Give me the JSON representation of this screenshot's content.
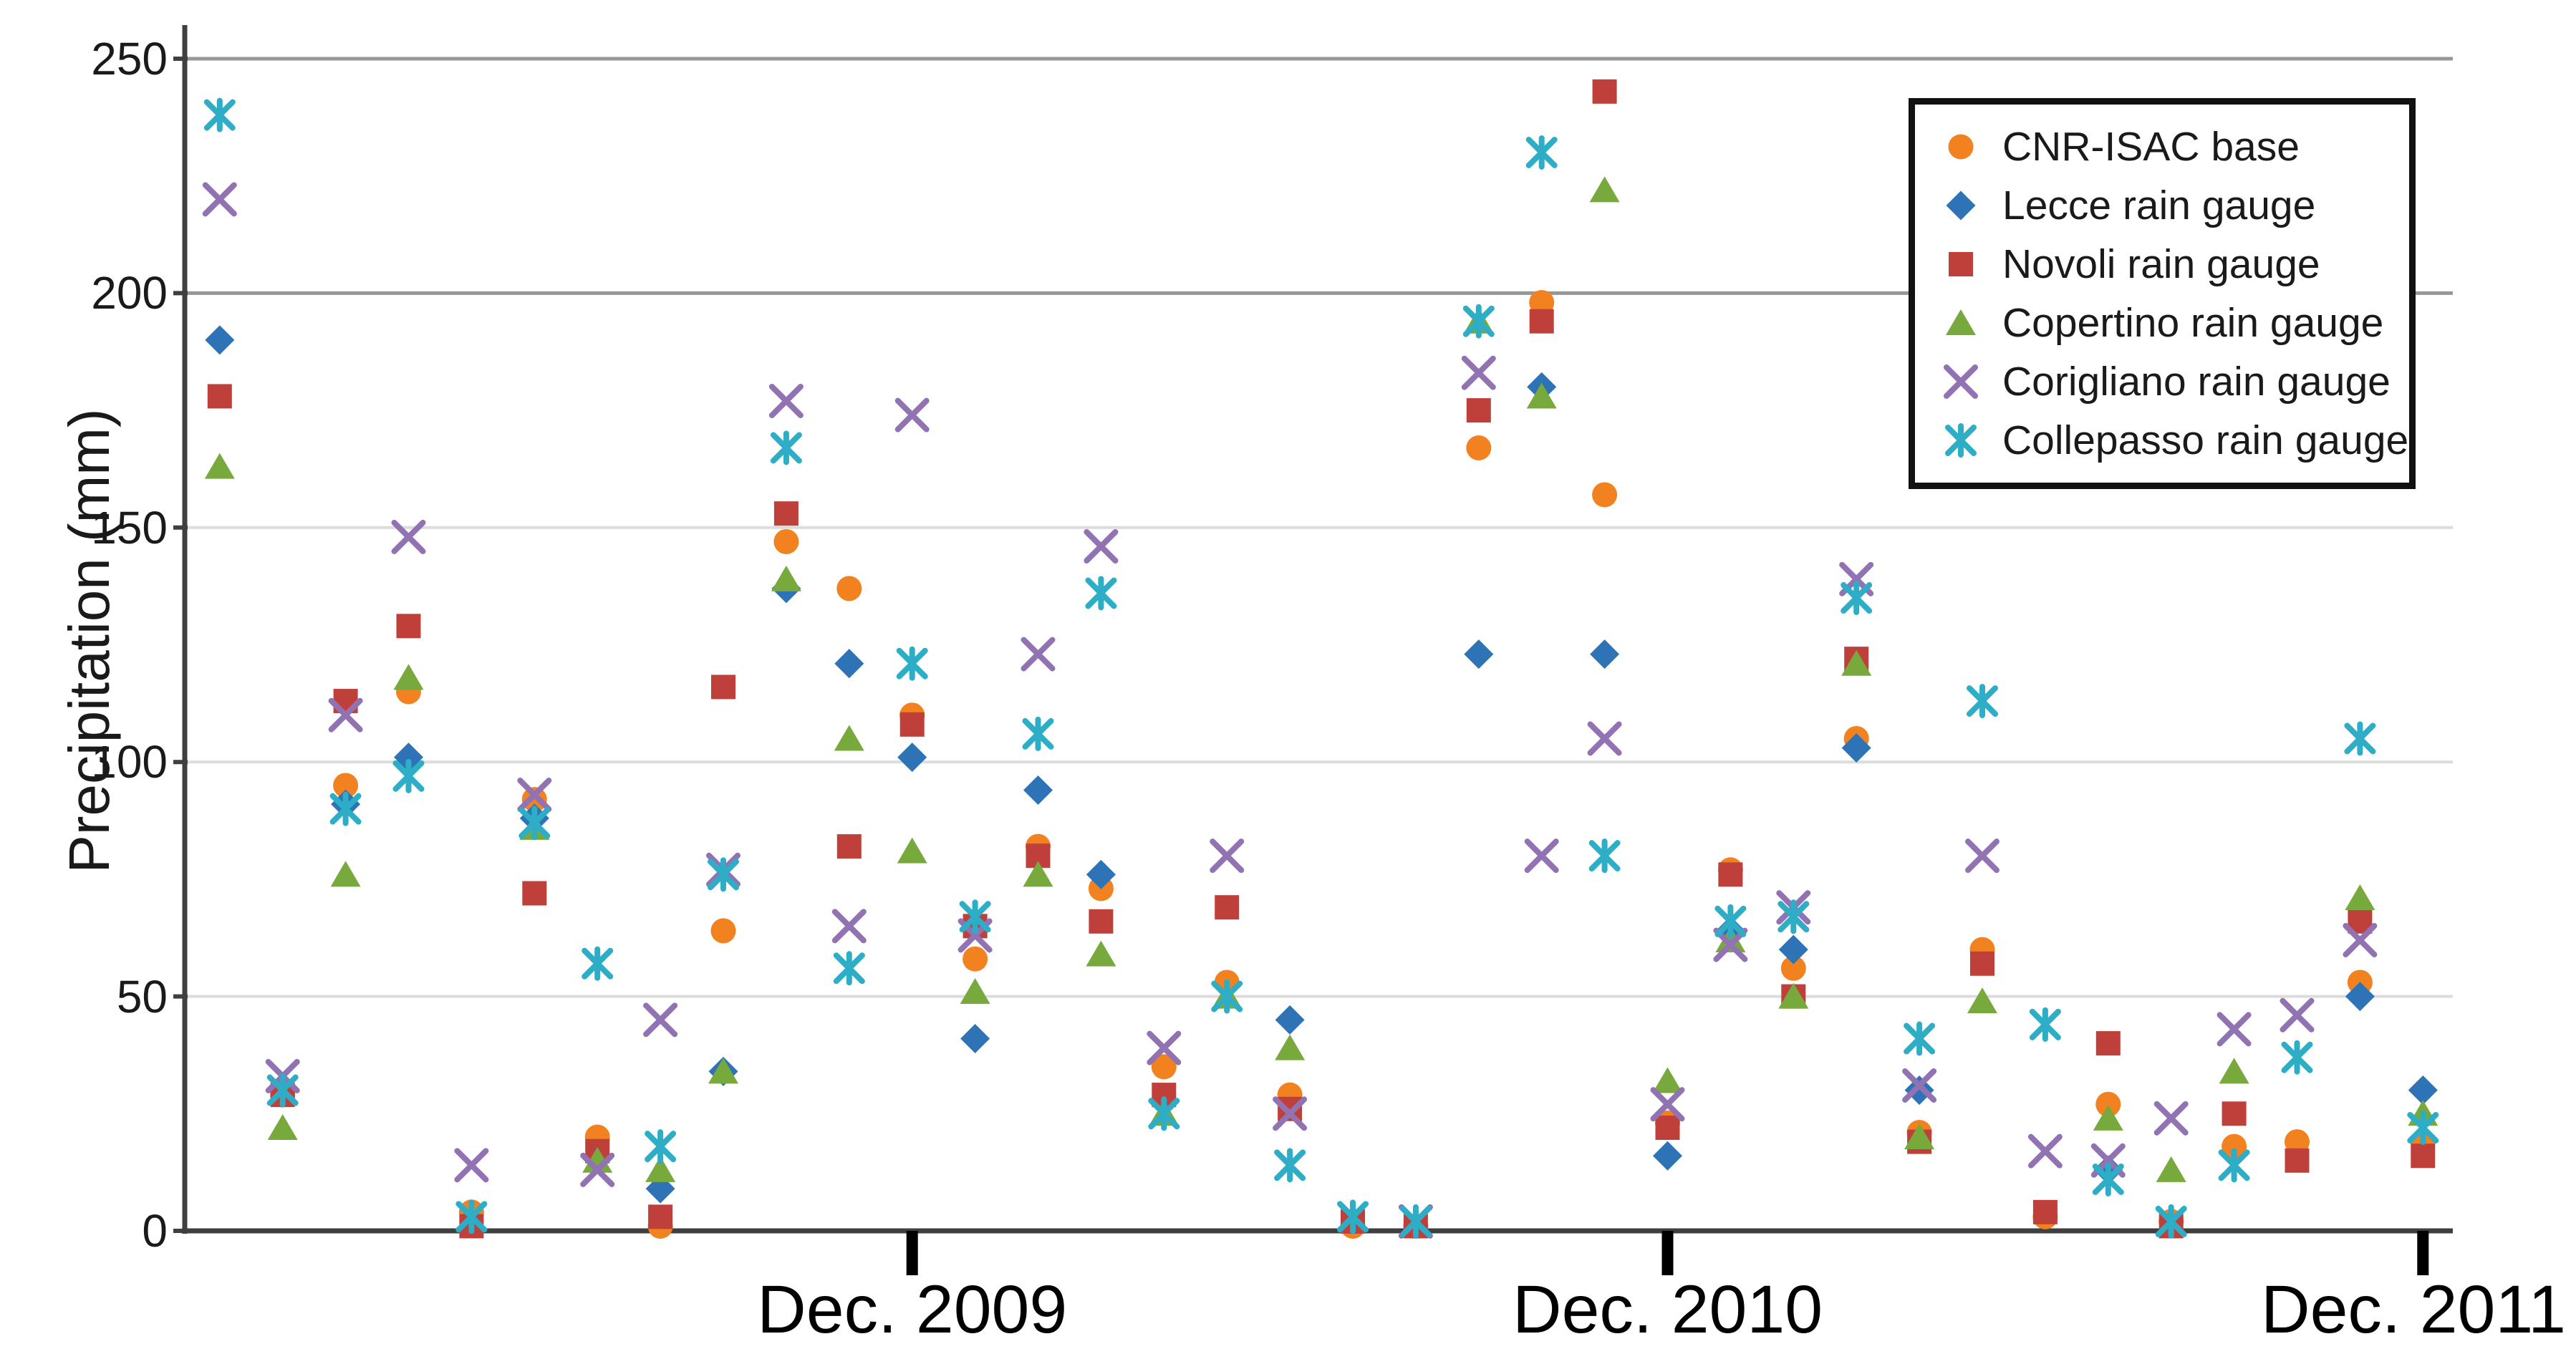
{
  "chart_data": {
    "type": "scatter",
    "title": "",
    "ylabel": "Precipitation (mm)",
    "xlabel": "",
    "ylim": [
      0,
      250
    ],
    "yticks": [
      0,
      50,
      100,
      150,
      200,
      250
    ],
    "grid": "horizontal",
    "grid_major_ticks": [
      200,
      250
    ],
    "legend_position": "top-right",
    "months_total": 36,
    "x_ticks": [
      {
        "month": 12,
        "label": "Dec. 2009"
      },
      {
        "month": 24,
        "label": "Dec. 2010"
      },
      {
        "month": 36,
        "label": "Dec. 2011"
      }
    ],
    "series": [
      {
        "name": "CNR-ISAC base",
        "marker": "circle",
        "color": "#F28220",
        "values": [
          null,
          29,
          95,
          115,
          4,
          92,
          20,
          1,
          64,
          147,
          137,
          110,
          58,
          82,
          73,
          35,
          53,
          29,
          1,
          1,
          167,
          198,
          157,
          23,
          77,
          56,
          105,
          21,
          60,
          3,
          27,
          2,
          18,
          19,
          53,
          19
        ]
      },
      {
        "name": "Lecce rain gauge",
        "marker": "diamond",
        "color": "#2E73B5",
        "values": [
          190,
          30,
          91,
          101,
          null,
          88,
          null,
          9,
          34,
          137,
          121,
          101,
          41,
          94,
          76,
          null,
          null,
          45,
          null,
          null,
          123,
          180,
          123,
          16,
          64,
          60,
          103,
          30,
          null,
          null,
          13,
          null,
          null,
          null,
          50,
          30
        ]
      },
      {
        "name": "Novoli rain gauge",
        "marker": "square",
        "color": "#BF403A",
        "values": [
          178,
          29,
          113,
          129,
          1,
          72,
          17,
          3,
          116,
          153,
          82,
          108,
          65,
          80,
          66,
          29,
          69,
          26,
          2,
          1,
          175,
          194,
          243,
          22,
          76,
          50,
          122,
          19,
          57,
          4,
          40,
          1,
          25,
          15,
          66,
          16
        ]
      },
      {
        "name": "Copertino rain gauge",
        "marker": "triangle",
        "color": "#77A93C",
        "values": [
          163,
          22,
          76,
          118,
          null,
          86,
          15,
          13,
          34,
          139,
          105,
          81,
          51,
          76,
          59,
          25,
          50,
          39,
          null,
          null,
          194,
          178,
          222,
          32,
          62,
          50,
          121,
          20,
          49,
          null,
          24,
          13,
          34,
          null,
          71,
          25
        ]
      },
      {
        "name": "Corigliano rain gauge",
        "marker": "xmark",
        "color": "#9173B3",
        "values": [
          220,
          33,
          110,
          148,
          14,
          93,
          13,
          45,
          77,
          177,
          65,
          174,
          63,
          123,
          146,
          39,
          80,
          25,
          null,
          2,
          183,
          80,
          105,
          27,
          61,
          69,
          139,
          31,
          80,
          17,
          15,
          24,
          43,
          46,
          62,
          null
        ]
      },
      {
        "name": "Collepasso rain gauge",
        "marker": "star6",
        "color": "#2EAEC6",
        "values": [
          238,
          30,
          90,
          97,
          3,
          87,
          57,
          18,
          76,
          167,
          56,
          121,
          67,
          106,
          136,
          25,
          50,
          14,
          3,
          2,
          194,
          230,
          80,
          null,
          66,
          67,
          135,
          41,
          113,
          44,
          11,
          2,
          14,
          37,
          105,
          22
        ]
      }
    ],
    "style": {
      "axis_color": "#3f3f3f",
      "tick_color": "#000000",
      "grid_major_color": "#979797",
      "grid_minor_color": "#dcdcdc",
      "text_color": "#1a1a1a",
      "background": "#ffffff"
    }
  }
}
